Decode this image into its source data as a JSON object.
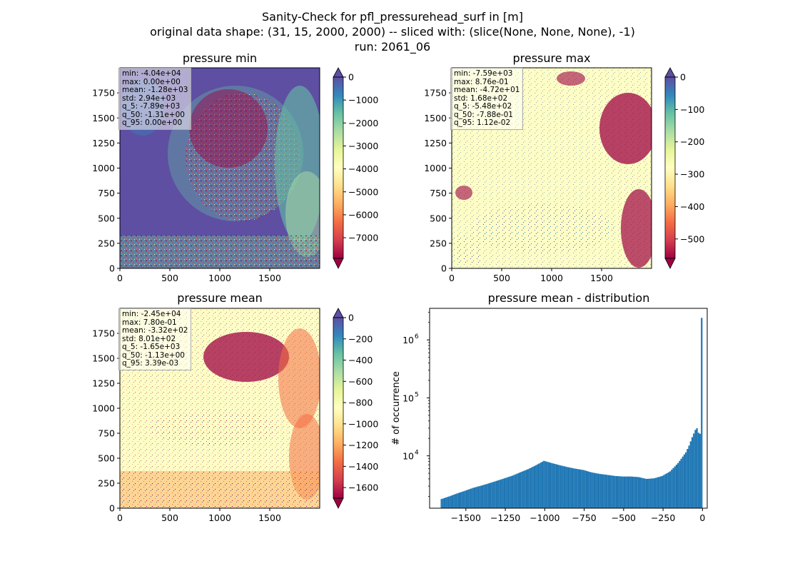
{
  "suptitle": {
    "line1": "Sanity-Check for pfl_pressurehead_surf in [m]",
    "line2": "original data shape: (31, 15, 2000, 2000) -- sliced with: (slice(None, None, None), -1)",
    "line3": "run: 2061_06"
  },
  "colors": {
    "spectral": [
      "#9e0142",
      "#d53e4f",
      "#f46d43",
      "#fdae61",
      "#fee08b",
      "#ffffbf",
      "#e6f598",
      "#abdda4",
      "#66c2a5",
      "#3288bd",
      "#5e4fa2"
    ],
    "hist_bar": "#1f77b4"
  },
  "chart_data": [
    {
      "type": "heatmap",
      "name": "pressure min",
      "title": "pressure min",
      "colormap": "Spectral",
      "x_ticks": [
        0,
        500,
        1000,
        1500
      ],
      "y_ticks": [
        0,
        250,
        500,
        750,
        1000,
        1250,
        1500,
        1750
      ],
      "xlim": [
        0,
        2000
      ],
      "ylim": [
        0,
        2000
      ],
      "colorbar": {
        "min": -7900,
        "max": 0,
        "ticks": [
          0,
          -1000,
          -2000,
          -3000,
          -4000,
          -5000,
          -6000,
          -7000
        ],
        "tick_labels": [
          "0",
          "−1000",
          "−2000",
          "−3000",
          "−4000",
          "−5000",
          "−6000",
          "−7000"
        ],
        "extend": "both"
      },
      "stats": [
        "min: -4.04e+04",
        "max: 0.00e+00",
        "mean: -1.28e+03",
        "std: 2.94e+03",
        "q_5: -7.89e+03",
        "q_50: -1.31e+00",
        "q_95: 0.00e+00"
      ]
    },
    {
      "type": "heatmap",
      "name": "pressure max",
      "title": "pressure max",
      "colormap": "Spectral",
      "x_ticks": [
        0,
        500,
        1000,
        1500
      ],
      "y_ticks": [
        0,
        250,
        500,
        750,
        1000,
        1250,
        1500,
        1750
      ],
      "xlim": [
        0,
        2000
      ],
      "ylim": [
        0,
        2000
      ],
      "colorbar": {
        "min": -560,
        "max": 0,
        "ticks": [
          0,
          -100,
          -200,
          -300,
          -400,
          -500
        ],
        "tick_labels": [
          "0",
          "−100",
          "−200",
          "−300",
          "−400",
          "−500"
        ],
        "extend": "both"
      },
      "stats": [
        "min: -7.59e+03",
        "max: 8.76e-01",
        "mean: -4.72e+01",
        "std: 1.68e+02",
        "q_5: -5.48e+02",
        "q_50: -7.88e-01",
        "q_95: 1.12e-02"
      ]
    },
    {
      "type": "heatmap",
      "name": "pressure mean",
      "title": "pressure mean",
      "colormap": "Spectral",
      "x_ticks": [
        0,
        500,
        1000,
        1500
      ],
      "y_ticks": [
        0,
        250,
        500,
        750,
        1000,
        1250,
        1500,
        1750
      ],
      "xlim": [
        0,
        2000
      ],
      "ylim": [
        0,
        2000
      ],
      "colorbar": {
        "min": -1700,
        "max": 0,
        "ticks": [
          0,
          -200,
          -400,
          -600,
          -800,
          -1000,
          -1200,
          -1400,
          -1600
        ],
        "tick_labels": [
          "0",
          "−200",
          "−400",
          "−600",
          "−800",
          "−1000",
          "−1200",
          "−1400",
          "−1600"
        ],
        "extend": "both"
      },
      "stats": [
        "min: -2.45e+04",
        "max: 7.80e-01",
        "mean: -3.32e+02",
        "std: 8.01e+02",
        "q_5: -1.65e+03",
        "q_50: -1.13e+00",
        "q_95: 3.39e-03"
      ]
    },
    {
      "type": "bar",
      "name": "pressure mean - distribution",
      "title": "pressure mean - distribution",
      "ylabel": "# of occurrence",
      "y_scale": "log",
      "xlim": [
        -1730,
        30
      ],
      "ylim": [
        1250,
        3500000
      ],
      "x_ticks": [
        -1500,
        -1250,
        -1000,
        -750,
        -500,
        -250,
        0
      ],
      "x_tick_labels": [
        "−1500",
        "−1250",
        "−1000",
        "−750",
        "−500",
        "−250",
        "0"
      ],
      "y_ticks": [
        10000,
        100000,
        1000000
      ],
      "y_tick_labels": [
        "10",
        "10",
        "10"
      ],
      "y_tick_exponents": [
        "4",
        "5",
        "6"
      ],
      "bin_range": [
        -1650,
        0
      ],
      "series": [
        {
          "color": "#1f77b4",
          "x": [
            -1650,
            -1600,
            -1550,
            -1500,
            -1450,
            -1400,
            -1350,
            -1300,
            -1250,
            -1200,
            -1150,
            -1100,
            -1050,
            -1000,
            -950,
            -900,
            -850,
            -800,
            -750,
            -700,
            -650,
            -600,
            -550,
            -500,
            -450,
            -400,
            -350,
            -300,
            -250,
            -200,
            -150,
            -100,
            -80,
            -60,
            -40,
            -30,
            -20,
            -10,
            -5,
            0
          ],
          "values": [
            1800,
            2000,
            2250,
            2500,
            2800,
            3050,
            3350,
            3700,
            4100,
            4550,
            5200,
            5900,
            6900,
            8200,
            7500,
            6900,
            6400,
            6000,
            5700,
            5200,
            4900,
            4700,
            4500,
            4400,
            4400,
            4300,
            4000,
            4100,
            4500,
            5400,
            7500,
            11500,
            15000,
            21000,
            28000,
            30000,
            25000,
            24000,
            30000,
            2400000
          ]
        }
      ]
    }
  ]
}
